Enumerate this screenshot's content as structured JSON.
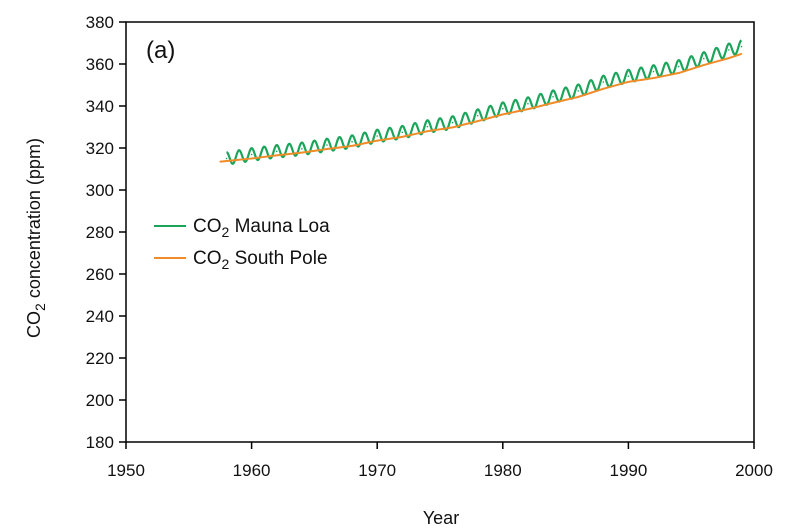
{
  "chart_data": {
    "type": "line",
    "panel_label": "(a)",
    "xlabel": "Year",
    "ylabel_prefix": "CO",
    "ylabel_sub": "2",
    "ylabel_suffix": " concentration (ppm)",
    "xlim": [
      1950,
      2000
    ],
    "ylim": [
      180,
      380
    ],
    "xticks": [
      1950,
      1960,
      1970,
      1980,
      1990,
      2000
    ],
    "yticks": [
      180,
      200,
      220,
      240,
      260,
      280,
      300,
      320,
      340,
      360,
      380
    ],
    "grid": false,
    "legend_position": "left",
    "series": [
      {
        "name_prefix": "CO",
        "name_sub": "2",
        "name_suffix": " Mauna Loa",
        "color": "#1aa55a",
        "seasonal_amplitude": 3,
        "x": [
          1958,
          1960,
          1962,
          1964,
          1966,
          1968,
          1970,
          1972,
          1974,
          1976,
          1978,
          1980,
          1982,
          1984,
          1986,
          1988,
          1990,
          1992,
          1994,
          1996,
          1998,
          1999
        ],
        "y": [
          315,
          316.9,
          318.4,
          319.6,
          321.4,
          323,
          325.7,
          327.5,
          330.2,
          332.1,
          335.4,
          338.7,
          341.1,
          344.4,
          347.2,
          351.4,
          354.2,
          356.4,
          358.8,
          362.6,
          366.7,
          368.3
        ]
      },
      {
        "name_prefix": "CO",
        "name_sub": "2",
        "name_suffix": " South Pole",
        "color": "#f08c28",
        "seasonal_amplitude": 0,
        "x": [
          1957.5,
          1960,
          1962,
          1964,
          1966,
          1968,
          1970,
          1972,
          1974,
          1976,
          1978,
          1980,
          1982,
          1984,
          1986,
          1988,
          1990,
          1992,
          1994,
          1996,
          1998,
          1999
        ],
        "y": [
          313.5,
          315,
          316.5,
          317.8,
          319.5,
          321,
          323.5,
          325.3,
          328,
          329.8,
          332.8,
          336,
          338.5,
          341.5,
          344.3,
          348.2,
          351.5,
          353.3,
          355.7,
          359.5,
          362.8,
          364.8
        ]
      }
    ]
  }
}
